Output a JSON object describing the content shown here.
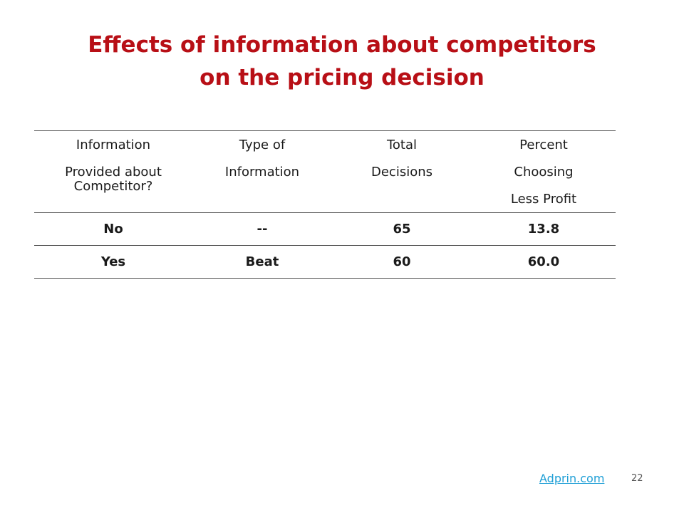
{
  "title": {
    "line1": "Effects of information about competitors",
    "line2": "on the pricing decision"
  },
  "table": {
    "headers": [
      [
        "Information",
        "Provided about",
        "Competitor?"
      ],
      [
        "Type of",
        "Information"
      ],
      [
        "Total",
        "Decisions"
      ],
      [
        "Percent",
        "Choosing",
        "Less Profit"
      ]
    ],
    "rows": [
      [
        "No",
        "--",
        "65",
        "13.8"
      ],
      [
        "Yes",
        "Beat",
        "60",
        "60.0"
      ]
    ]
  },
  "footer": {
    "link_text": "Adprin.com",
    "page_number": "22"
  },
  "colors": {
    "title": "#b80f16",
    "link": "#1f9fd6"
  }
}
